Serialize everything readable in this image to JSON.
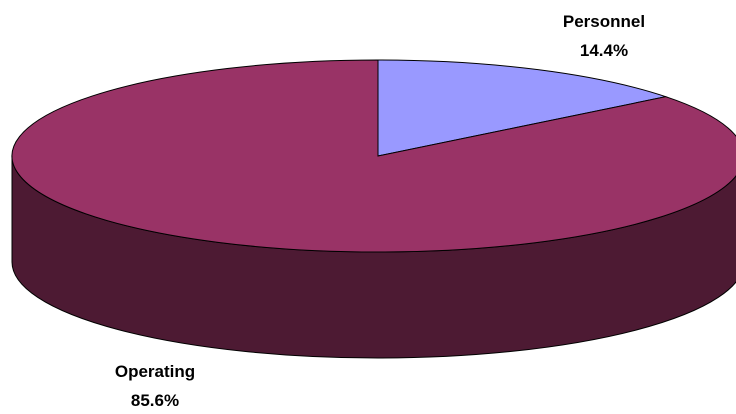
{
  "chart_data": {
    "type": "pie",
    "three_d": true,
    "legend": "none",
    "slices": [
      {
        "name": "Personnel",
        "value": 14.4,
        "label": "14.4%",
        "color": "#9999ff",
        "side_color": "#4c4c80"
      },
      {
        "name": "Operating",
        "value": 85.6,
        "label": "85.6%",
        "color": "#993366",
        "side_color": "#4d1a33"
      }
    ]
  }
}
